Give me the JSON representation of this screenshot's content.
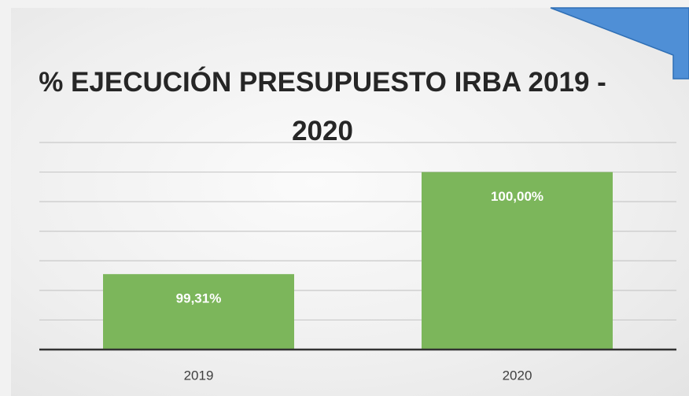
{
  "chart_data": {
    "type": "bar",
    "title": "% EJECUCIÓN PRESUPUESTO IRBA 2019 - 2020",
    "categories": [
      "2019",
      "2020"
    ],
    "values": [
      99.31,
      100
    ],
    "value_labels": [
      "99,31%",
      "100,00%"
    ],
    "color": "#7cb65b",
    "ylim": [
      98.8,
      100.2
    ],
    "yticks": [
      98.8,
      99,
      99.2,
      99.4,
      99.6,
      99.8,
      100,
      100.2
    ],
    "grid": true
  }
}
